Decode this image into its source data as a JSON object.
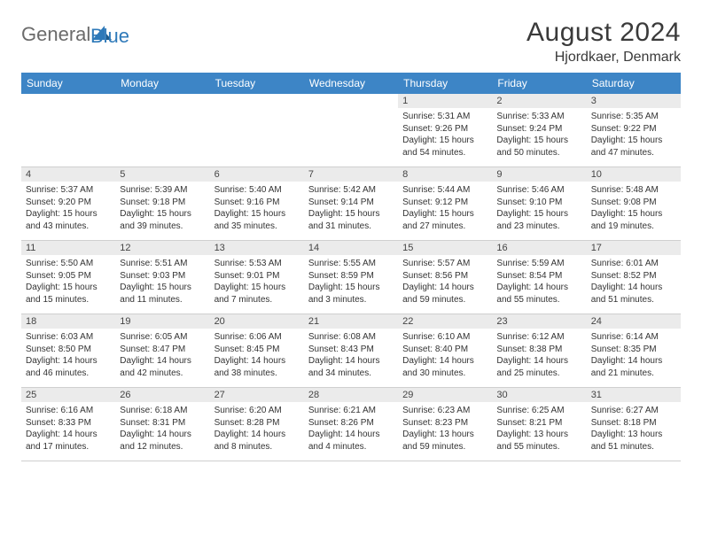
{
  "brand": {
    "part1": "General",
    "part2": "Blue"
  },
  "header": {
    "month_title": "August 2024",
    "location": "Hjordkaer, Denmark"
  },
  "colors": {
    "header_bg": "#3d85c6",
    "header_fg": "#ffffff",
    "daynum_bg": "#ebebeb",
    "text": "#333333",
    "rule": "#cfcfcf"
  },
  "day_labels": [
    "Sunday",
    "Monday",
    "Tuesday",
    "Wednesday",
    "Thursday",
    "Friday",
    "Saturday"
  ],
  "weeks": [
    [
      {
        "blank": true
      },
      {
        "blank": true
      },
      {
        "blank": true
      },
      {
        "blank": true
      },
      {
        "n": "1",
        "sr": "Sunrise: 5:31 AM",
        "ss": "Sunset: 9:26 PM",
        "dl": "Daylight: 15 hours and 54 minutes."
      },
      {
        "n": "2",
        "sr": "Sunrise: 5:33 AM",
        "ss": "Sunset: 9:24 PM",
        "dl": "Daylight: 15 hours and 50 minutes."
      },
      {
        "n": "3",
        "sr": "Sunrise: 5:35 AM",
        "ss": "Sunset: 9:22 PM",
        "dl": "Daylight: 15 hours and 47 minutes."
      }
    ],
    [
      {
        "n": "4",
        "sr": "Sunrise: 5:37 AM",
        "ss": "Sunset: 9:20 PM",
        "dl": "Daylight: 15 hours and 43 minutes."
      },
      {
        "n": "5",
        "sr": "Sunrise: 5:39 AM",
        "ss": "Sunset: 9:18 PM",
        "dl": "Daylight: 15 hours and 39 minutes."
      },
      {
        "n": "6",
        "sr": "Sunrise: 5:40 AM",
        "ss": "Sunset: 9:16 PM",
        "dl": "Daylight: 15 hours and 35 minutes."
      },
      {
        "n": "7",
        "sr": "Sunrise: 5:42 AM",
        "ss": "Sunset: 9:14 PM",
        "dl": "Daylight: 15 hours and 31 minutes."
      },
      {
        "n": "8",
        "sr": "Sunrise: 5:44 AM",
        "ss": "Sunset: 9:12 PM",
        "dl": "Daylight: 15 hours and 27 minutes."
      },
      {
        "n": "9",
        "sr": "Sunrise: 5:46 AM",
        "ss": "Sunset: 9:10 PM",
        "dl": "Daylight: 15 hours and 23 minutes."
      },
      {
        "n": "10",
        "sr": "Sunrise: 5:48 AM",
        "ss": "Sunset: 9:08 PM",
        "dl": "Daylight: 15 hours and 19 minutes."
      }
    ],
    [
      {
        "n": "11",
        "sr": "Sunrise: 5:50 AM",
        "ss": "Sunset: 9:05 PM",
        "dl": "Daylight: 15 hours and 15 minutes."
      },
      {
        "n": "12",
        "sr": "Sunrise: 5:51 AM",
        "ss": "Sunset: 9:03 PM",
        "dl": "Daylight: 15 hours and 11 minutes."
      },
      {
        "n": "13",
        "sr": "Sunrise: 5:53 AM",
        "ss": "Sunset: 9:01 PM",
        "dl": "Daylight: 15 hours and 7 minutes."
      },
      {
        "n": "14",
        "sr": "Sunrise: 5:55 AM",
        "ss": "Sunset: 8:59 PM",
        "dl": "Daylight: 15 hours and 3 minutes."
      },
      {
        "n": "15",
        "sr": "Sunrise: 5:57 AM",
        "ss": "Sunset: 8:56 PM",
        "dl": "Daylight: 14 hours and 59 minutes."
      },
      {
        "n": "16",
        "sr": "Sunrise: 5:59 AM",
        "ss": "Sunset: 8:54 PM",
        "dl": "Daylight: 14 hours and 55 minutes."
      },
      {
        "n": "17",
        "sr": "Sunrise: 6:01 AM",
        "ss": "Sunset: 8:52 PM",
        "dl": "Daylight: 14 hours and 51 minutes."
      }
    ],
    [
      {
        "n": "18",
        "sr": "Sunrise: 6:03 AM",
        "ss": "Sunset: 8:50 PM",
        "dl": "Daylight: 14 hours and 46 minutes."
      },
      {
        "n": "19",
        "sr": "Sunrise: 6:05 AM",
        "ss": "Sunset: 8:47 PM",
        "dl": "Daylight: 14 hours and 42 minutes."
      },
      {
        "n": "20",
        "sr": "Sunrise: 6:06 AM",
        "ss": "Sunset: 8:45 PM",
        "dl": "Daylight: 14 hours and 38 minutes."
      },
      {
        "n": "21",
        "sr": "Sunrise: 6:08 AM",
        "ss": "Sunset: 8:43 PM",
        "dl": "Daylight: 14 hours and 34 minutes."
      },
      {
        "n": "22",
        "sr": "Sunrise: 6:10 AM",
        "ss": "Sunset: 8:40 PM",
        "dl": "Daylight: 14 hours and 30 minutes."
      },
      {
        "n": "23",
        "sr": "Sunrise: 6:12 AM",
        "ss": "Sunset: 8:38 PM",
        "dl": "Daylight: 14 hours and 25 minutes."
      },
      {
        "n": "24",
        "sr": "Sunrise: 6:14 AM",
        "ss": "Sunset: 8:35 PM",
        "dl": "Daylight: 14 hours and 21 minutes."
      }
    ],
    [
      {
        "n": "25",
        "sr": "Sunrise: 6:16 AM",
        "ss": "Sunset: 8:33 PM",
        "dl": "Daylight: 14 hours and 17 minutes."
      },
      {
        "n": "26",
        "sr": "Sunrise: 6:18 AM",
        "ss": "Sunset: 8:31 PM",
        "dl": "Daylight: 14 hours and 12 minutes."
      },
      {
        "n": "27",
        "sr": "Sunrise: 6:20 AM",
        "ss": "Sunset: 8:28 PM",
        "dl": "Daylight: 14 hours and 8 minutes."
      },
      {
        "n": "28",
        "sr": "Sunrise: 6:21 AM",
        "ss": "Sunset: 8:26 PM",
        "dl": "Daylight: 14 hours and 4 minutes."
      },
      {
        "n": "29",
        "sr": "Sunrise: 6:23 AM",
        "ss": "Sunset: 8:23 PM",
        "dl": "Daylight: 13 hours and 59 minutes."
      },
      {
        "n": "30",
        "sr": "Sunrise: 6:25 AM",
        "ss": "Sunset: 8:21 PM",
        "dl": "Daylight: 13 hours and 55 minutes."
      },
      {
        "n": "31",
        "sr": "Sunrise: 6:27 AM",
        "ss": "Sunset: 8:18 PM",
        "dl": "Daylight: 13 hours and 51 minutes."
      }
    ]
  ]
}
